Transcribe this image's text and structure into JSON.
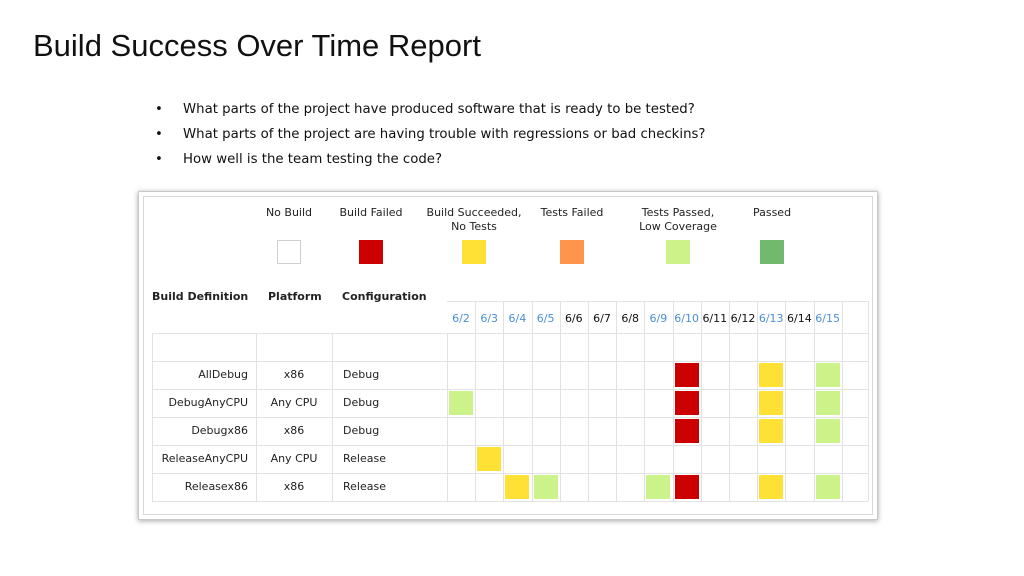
{
  "title": "Build Success Over Time Report",
  "bullets": [
    "What parts of the project have produced software that is ready to be tested?",
    "What parts of the project are having trouble with regressions or bad checkins?",
    "How well is the team testing the code?"
  ],
  "report": {
    "legend": [
      {
        "label": "No Build",
        "status": "no_build",
        "color": "#ffffff"
      },
      {
        "label": "Build Failed",
        "status": "failed",
        "color": "#cc0000"
      },
      {
        "label": "Build Succeeded,\nNo Tests",
        "status": "no_tests",
        "color": "#ffe135"
      },
      {
        "label": "Tests Failed",
        "status": "tests_failed",
        "color": "#ff944d"
      },
      {
        "label": "Tests Passed,\nLow Coverage",
        "status": "low_coverage",
        "color": "#ccf28a"
      },
      {
        "label": "Passed",
        "status": "passed",
        "color": "#72b96e"
      }
    ],
    "headers": {
      "build_definition": "Build Definition",
      "platform": "Platform",
      "configuration": "Configuration"
    },
    "dates": [
      {
        "label": "6/2",
        "color": "#4a8fd8"
      },
      {
        "label": "6/3",
        "color": "#4a8fd8"
      },
      {
        "label": "6/4",
        "color": "#4a8fd8"
      },
      {
        "label": "6/5",
        "color": "#4a8fd8"
      },
      {
        "label": "6/6",
        "color": "#111111"
      },
      {
        "label": "6/7",
        "color": "#111111"
      },
      {
        "label": "6/8",
        "color": "#111111"
      },
      {
        "label": "6/9",
        "color": "#4a8fd8"
      },
      {
        "label": "6/10",
        "color": "#4a8fd8"
      },
      {
        "label": "6/11",
        "color": "#111111"
      },
      {
        "label": "6/12",
        "color": "#111111"
      },
      {
        "label": "6/13",
        "color": "#4a8fd8"
      },
      {
        "label": "6/14",
        "color": "#111111"
      },
      {
        "label": "6/15",
        "color": "#4a8fd8"
      }
    ],
    "rows": [
      {
        "definition": "AllDebug",
        "platform": "x86",
        "configuration": "Debug",
        "cells": {
          "6/10": "failed",
          "6/13": "no_tests",
          "6/15": "low_coverage"
        }
      },
      {
        "definition": "DebugAnyCPU",
        "platform": "Any CPU",
        "configuration": "Debug",
        "cells": {
          "6/2": "low_coverage",
          "6/10": "failed",
          "6/13": "no_tests",
          "6/15": "low_coverage"
        }
      },
      {
        "definition": "Debugx86",
        "platform": "x86",
        "configuration": "Debug",
        "cells": {
          "6/10": "failed",
          "6/13": "no_tests",
          "6/15": "low_coverage"
        }
      },
      {
        "definition": "ReleaseAnyCPU",
        "platform": "Any CPU",
        "configuration": "Release",
        "cells": {
          "6/3": "no_tests"
        }
      },
      {
        "definition": "Releasex86",
        "platform": "x86",
        "configuration": "Release",
        "cells": {
          "6/4": "no_tests",
          "6/5": "low_coverage",
          "6/9": "low_coverage",
          "6/10": "failed",
          "6/13": "no_tests",
          "6/15": "low_coverage"
        }
      }
    ]
  }
}
